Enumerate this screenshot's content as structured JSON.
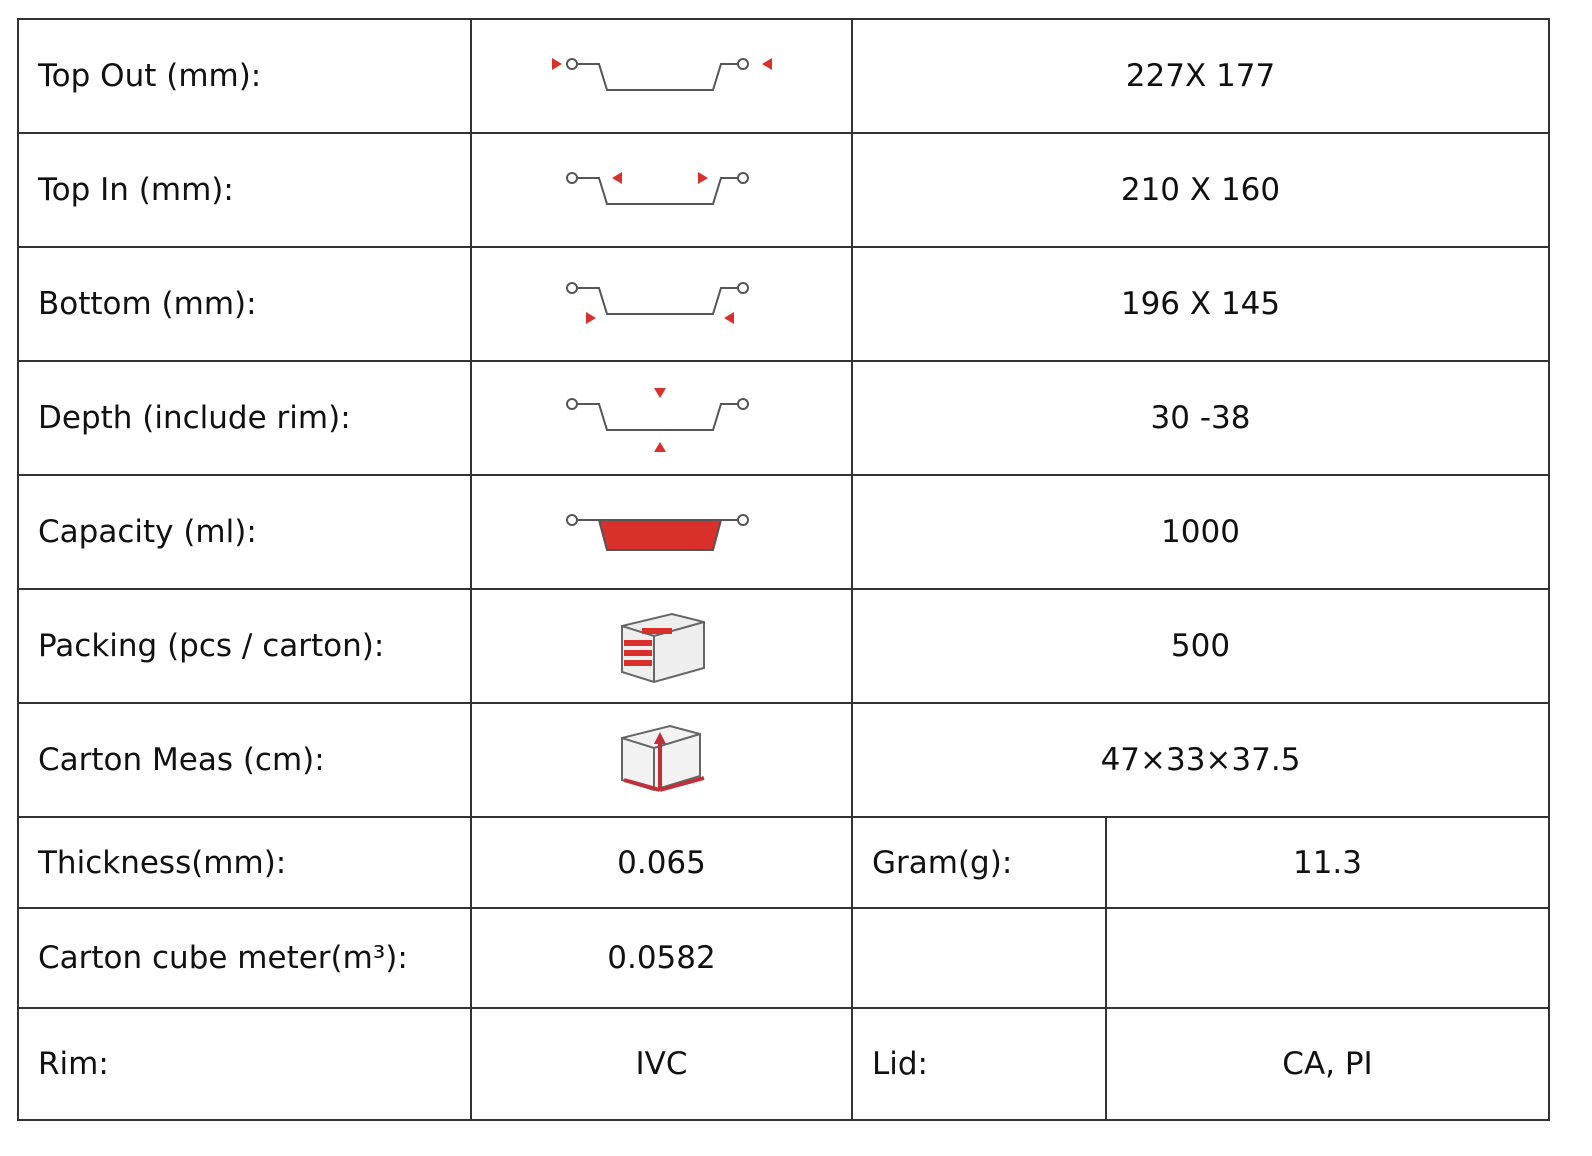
{
  "table": {
    "rows": [
      [
        "Top Out (mm):",
        "227X 177"
      ],
      [
        "Top In (mm):",
        "210 X 160"
      ],
      [
        "Bottom (mm):",
        "196 X 145"
      ],
      [
        "Depth (include rim):",
        "30 -38"
      ],
      [
        "Capacity (ml):",
        "1000"
      ],
      [
        "Packing (pcs / carton):",
        "500"
      ],
      [
        "Carton Meas (cm):",
        "47×33×37.5"
      ],
      [
        "Thickness(mm):",
        "0.065",
        "Gram(g):",
        "11.3"
      ],
      [
        "Carton cube meter(m³):",
        "0.0582"
      ],
      [
        "Rim:",
        "IVC",
        "Lid:",
        "CA, PI"
      ]
    ]
  }
}
